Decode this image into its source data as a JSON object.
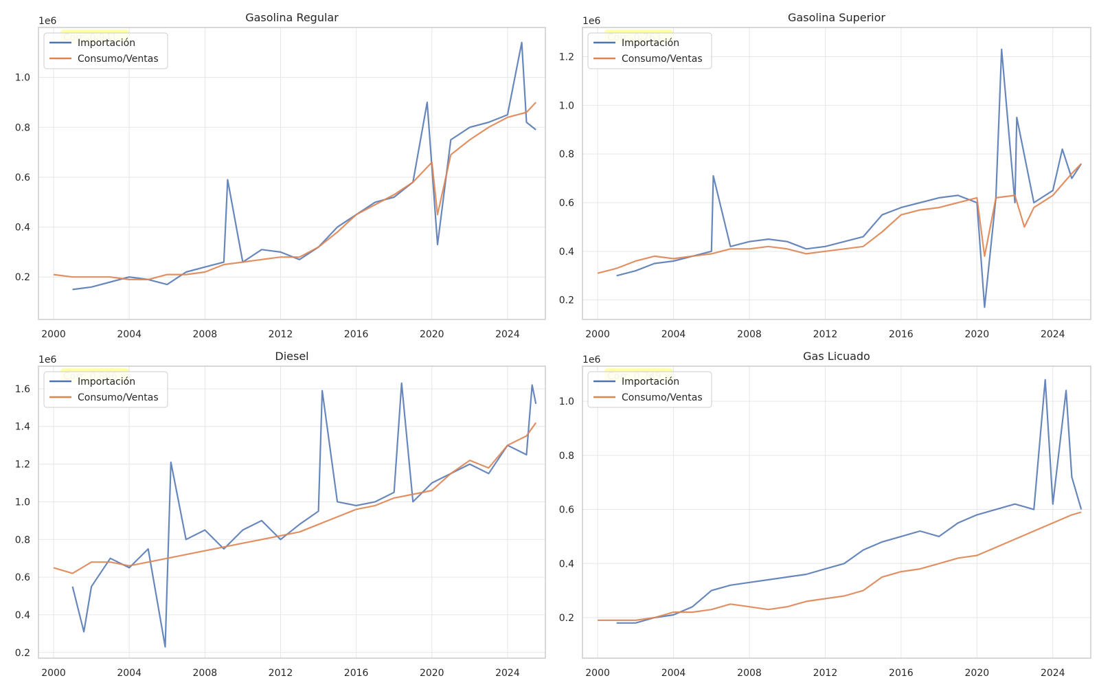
{
  "legend": {
    "import_label": "Importación",
    "sales_label": "Consumo/Ventas"
  },
  "colors": {
    "import": "#4C72B0",
    "sales": "#DD8452",
    "grid": "#e6e6e6",
    "frame": "#cccccc",
    "corr_highlight": "#ffff66"
  },
  "chart_data": [
    {
      "type": "line",
      "title": "Gasolina Regular",
      "offset_label": "1e6",
      "corr_text": "Corr: 0.941",
      "xlim": [
        1999.2,
        2026.0
      ],
      "ylim": [
        0.03,
        1.2
      ],
      "xticks": [
        2000,
        2004,
        2008,
        2012,
        2016,
        2020,
        2024
      ],
      "xtick_labels": [
        "2000",
        "2004",
        "2008",
        "2012",
        "2016",
        "2020",
        "2024"
      ],
      "yticks": [
        0.2,
        0.4,
        0.6,
        0.8,
        1.0
      ],
      "ytick_labels": [
        "0.2",
        "0.4",
        "0.6",
        "0.8",
        "1.0"
      ],
      "series": [
        {
          "name": "Importación",
          "x": [
            2001.0,
            2002.0,
            2003.0,
            2004.0,
            2005.0,
            2006.0,
            2007.0,
            2008.0,
            2009.0,
            2009.2,
            2010.0,
            2011.0,
            2012.0,
            2013.0,
            2014.0,
            2015.0,
            2016.0,
            2017.0,
            2018.0,
            2019.0,
            2019.75,
            2020.3,
            2021.0,
            2022.0,
            2023.0,
            2024.0,
            2024.75,
            2025.0,
            2025.5
          ],
          "y": [
            0.15,
            0.16,
            0.18,
            0.2,
            0.19,
            0.17,
            0.22,
            0.24,
            0.26,
            0.59,
            0.26,
            0.31,
            0.3,
            0.27,
            0.32,
            0.4,
            0.45,
            0.5,
            0.52,
            0.58,
            0.9,
            0.33,
            0.75,
            0.8,
            0.82,
            0.85,
            1.14,
            0.82,
            0.79
          ]
        },
        {
          "name": "Consumo/Ventas",
          "x": [
            2000.0,
            2001.0,
            2002.0,
            2003.0,
            2004.0,
            2005.0,
            2006.0,
            2007.0,
            2008.0,
            2009.0,
            2010.0,
            2011.0,
            2012.0,
            2013.0,
            2014.0,
            2015.0,
            2016.0,
            2017.0,
            2018.0,
            2019.0,
            2020.0,
            2020.3,
            2021.0,
            2022.0,
            2023.0,
            2024.0,
            2025.0,
            2025.5
          ],
          "y": [
            0.21,
            0.2,
            0.2,
            0.2,
            0.19,
            0.19,
            0.21,
            0.21,
            0.22,
            0.25,
            0.26,
            0.27,
            0.28,
            0.28,
            0.32,
            0.38,
            0.45,
            0.49,
            0.53,
            0.58,
            0.66,
            0.45,
            0.69,
            0.75,
            0.8,
            0.84,
            0.86,
            0.9
          ]
        }
      ]
    },
    {
      "type": "line",
      "title": "Gasolina Superior",
      "offset_label": "1e6",
      "corr_text": "Corr: 0.763",
      "xlim": [
        1999.2,
        2026.0
      ],
      "ylim": [
        0.12,
        1.32
      ],
      "xticks": [
        2000,
        2004,
        2008,
        2012,
        2016,
        2020,
        2024
      ],
      "xtick_labels": [
        "2000",
        "2004",
        "2008",
        "2012",
        "2016",
        "2020",
        "2024"
      ],
      "yticks": [
        0.2,
        0.4,
        0.6,
        0.8,
        1.0,
        1.2
      ],
      "ytick_labels": [
        "0.2",
        "0.4",
        "0.6",
        "0.8",
        "1.0",
        "1.2"
      ],
      "series": [
        {
          "name": "Importación",
          "x": [
            2001.0,
            2002.0,
            2003.0,
            2004.0,
            2005.0,
            2006.0,
            2006.1,
            2007.0,
            2008.0,
            2009.0,
            2010.0,
            2011.0,
            2012.0,
            2013.0,
            2014.0,
            2015.0,
            2016.0,
            2017.0,
            2018.0,
            2019.0,
            2020.0,
            2020.4,
            2021.0,
            2021.3,
            2022.0,
            2022.1,
            2023.0,
            2024.0,
            2024.5,
            2025.0,
            2025.5
          ],
          "y": [
            0.3,
            0.32,
            0.35,
            0.36,
            0.38,
            0.4,
            0.71,
            0.42,
            0.44,
            0.45,
            0.44,
            0.41,
            0.42,
            0.44,
            0.46,
            0.55,
            0.58,
            0.6,
            0.62,
            0.63,
            0.6,
            0.17,
            0.62,
            1.23,
            0.6,
            0.95,
            0.6,
            0.65,
            0.82,
            0.7,
            0.76
          ]
        },
        {
          "name": "Consumo/Ventas",
          "x": [
            2000.0,
            2001.0,
            2002.0,
            2003.0,
            2004.0,
            2005.0,
            2006.0,
            2007.0,
            2008.0,
            2009.0,
            2010.0,
            2011.0,
            2012.0,
            2013.0,
            2014.0,
            2015.0,
            2016.0,
            2017.0,
            2018.0,
            2019.0,
            2020.0,
            2020.4,
            2021.0,
            2022.0,
            2022.5,
            2023.0,
            2024.0,
            2025.0,
            2025.5
          ],
          "y": [
            0.31,
            0.33,
            0.36,
            0.38,
            0.37,
            0.38,
            0.39,
            0.41,
            0.41,
            0.42,
            0.41,
            0.39,
            0.4,
            0.41,
            0.42,
            0.48,
            0.55,
            0.57,
            0.58,
            0.6,
            0.62,
            0.38,
            0.62,
            0.63,
            0.5,
            0.58,
            0.63,
            0.72,
            0.76
          ]
        }
      ]
    },
    {
      "type": "line",
      "title": "Diesel",
      "offset_label": "1e6",
      "corr_text": "Corr: 0.806",
      "xlim": [
        1999.2,
        2026.0
      ],
      "ylim": [
        0.17,
        1.72
      ],
      "xticks": [
        2000,
        2004,
        2008,
        2012,
        2016,
        2020,
        2024
      ],
      "xtick_labels": [
        "2000",
        "2004",
        "2008",
        "2012",
        "2016",
        "2020",
        "2024"
      ],
      "yticks": [
        0.2,
        0.4,
        0.6,
        0.8,
        1.0,
        1.2,
        1.4,
        1.6
      ],
      "ytick_labels": [
        "0.2",
        "0.4",
        "0.6",
        "0.8",
        "1.0",
        "1.2",
        "1.4",
        "1.6"
      ],
      "series": [
        {
          "name": "Importación",
          "x": [
            2001.0,
            2001.6,
            2002.0,
            2003.0,
            2004.0,
            2005.0,
            2005.9,
            2006.2,
            2007.0,
            2008.0,
            2009.0,
            2010.0,
            2011.0,
            2012.0,
            2013.0,
            2014.0,
            2014.2,
            2015.0,
            2016.0,
            2017.0,
            2018.0,
            2018.4,
            2019.0,
            2020.0,
            2021.0,
            2022.0,
            2023.0,
            2024.0,
            2025.0,
            2025.3,
            2025.5
          ],
          "y": [
            0.55,
            0.31,
            0.55,
            0.7,
            0.65,
            0.75,
            0.23,
            1.21,
            0.8,
            0.85,
            0.75,
            0.85,
            0.9,
            0.8,
            0.88,
            0.95,
            1.59,
            1.0,
            0.98,
            1.0,
            1.05,
            1.63,
            1.0,
            1.1,
            1.15,
            1.2,
            1.15,
            1.3,
            1.25,
            1.62,
            1.52
          ]
        },
        {
          "name": "Consumo/Ventas",
          "x": [
            2000.0,
            2001.0,
            2002.0,
            2003.0,
            2004.0,
            2005.0,
            2006.0,
            2007.0,
            2008.0,
            2009.0,
            2010.0,
            2011.0,
            2012.0,
            2013.0,
            2014.0,
            2015.0,
            2016.0,
            2017.0,
            2018.0,
            2019.0,
            2020.0,
            2021.0,
            2022.0,
            2023.0,
            2024.0,
            2025.0,
            2025.5
          ],
          "y": [
            0.65,
            0.62,
            0.68,
            0.68,
            0.66,
            0.68,
            0.7,
            0.72,
            0.74,
            0.76,
            0.78,
            0.8,
            0.82,
            0.84,
            0.88,
            0.92,
            0.96,
            0.98,
            1.02,
            1.04,
            1.06,
            1.15,
            1.22,
            1.18,
            1.3,
            1.35,
            1.42
          ]
        }
      ]
    },
    {
      "type": "line",
      "title": "Gas Licuado",
      "offset_label": "1e6",
      "corr_text": "Corr: 0.749",
      "xlim": [
        1999.2,
        2026.0
      ],
      "ylim": [
        0.05,
        1.13
      ],
      "xticks": [
        2000,
        2004,
        2008,
        2012,
        2016,
        2020,
        2024
      ],
      "xtick_labels": [
        "2000",
        "2004",
        "2008",
        "2012",
        "2016",
        "2020",
        "2024"
      ],
      "yticks": [
        0.2,
        0.4,
        0.6,
        0.8,
        1.0
      ],
      "ytick_labels": [
        "0.2",
        "0.4",
        "0.6",
        "0.8",
        "1.0"
      ],
      "series": [
        {
          "name": "Importación",
          "x": [
            2001.0,
            2002.0,
            2003.0,
            2004.0,
            2005.0,
            2006.0,
            2007.0,
            2008.0,
            2009.0,
            2010.0,
            2011.0,
            2012.0,
            2013.0,
            2014.0,
            2015.0,
            2016.0,
            2017.0,
            2018.0,
            2019.0,
            2020.0,
            2021.0,
            2022.0,
            2023.0,
            2023.6,
            2024.0,
            2024.7,
            2025.0,
            2025.5
          ],
          "y": [
            0.18,
            0.18,
            0.2,
            0.21,
            0.24,
            0.3,
            0.32,
            0.33,
            0.34,
            0.35,
            0.36,
            0.38,
            0.4,
            0.45,
            0.48,
            0.5,
            0.52,
            0.5,
            0.55,
            0.58,
            0.6,
            0.62,
            0.6,
            1.08,
            0.62,
            1.04,
            0.72,
            0.6
          ]
        },
        {
          "name": "Consumo/Ventas",
          "x": [
            2000.0,
            2001.0,
            2002.0,
            2003.0,
            2004.0,
            2005.0,
            2006.0,
            2007.0,
            2008.0,
            2009.0,
            2010.0,
            2011.0,
            2012.0,
            2013.0,
            2014.0,
            2015.0,
            2016.0,
            2017.0,
            2018.0,
            2019.0,
            2020.0,
            2021.0,
            2022.0,
            2023.0,
            2024.0,
            2025.0,
            2025.5
          ],
          "y": [
            0.19,
            0.19,
            0.19,
            0.2,
            0.22,
            0.22,
            0.23,
            0.25,
            0.24,
            0.23,
            0.24,
            0.26,
            0.27,
            0.28,
            0.3,
            0.35,
            0.37,
            0.38,
            0.4,
            0.42,
            0.43,
            0.46,
            0.49,
            0.52,
            0.55,
            0.58,
            0.59
          ]
        }
      ]
    }
  ]
}
